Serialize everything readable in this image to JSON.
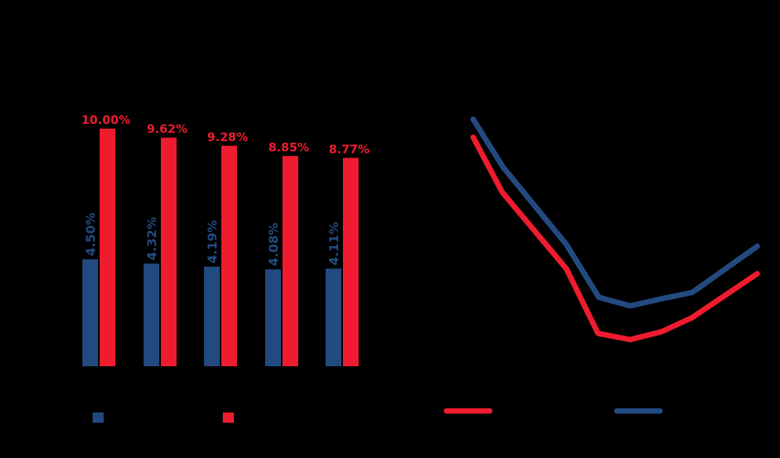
{
  "colors": {
    "background": "#000000",
    "blue": "#234A80",
    "red": "#EE1C2E"
  },
  "chart_data": [
    {
      "type": "bar",
      "title": "",
      "xlabel": "",
      "ylabel": "",
      "categories": [
        "",
        "",
        "",
        "",
        ""
      ],
      "series": [
        {
          "name": "",
          "color": "#234A80",
          "values": [
            4.5,
            4.32,
            4.19,
            4.08,
            4.11
          ],
          "labels": [
            "4.50%",
            "4.32%",
            "4.19%",
            "4.08%",
            "4.11%"
          ],
          "label_orientation": "vertical"
        },
        {
          "name": "",
          "color": "#EE1C2E",
          "values": [
            10.0,
            9.62,
            9.28,
            8.85,
            8.77
          ],
          "labels": [
            "10.00%",
            "9.62%",
            "9.28%",
            "8.85%",
            "8.77%"
          ],
          "label_orientation": "horizontal"
        }
      ],
      "ylim": [
        0,
        10.5
      ],
      "grid": false,
      "legend_position": "bottom"
    },
    {
      "type": "line",
      "title": "",
      "xlabel": "",
      "ylabel": "",
      "x": [
        1,
        2,
        3,
        4,
        5,
        6,
        7,
        8
      ],
      "series": [
        {
          "name": "",
          "color": "#EE1C2E",
          "values": [
            10.2,
            8.9,
            7.0,
            5.4,
            5.25,
            5.45,
            5.8,
            6.6
          ]
        },
        {
          "name": "",
          "color": "#234A80",
          "values": [
            10.65,
            9.5,
            7.6,
            6.3,
            6.1,
            6.28,
            6.43,
            7.55
          ]
        }
      ],
      "grid": false,
      "legend_position": "bottom",
      "pixel_points": {
        "red": [
          [
            603,
            175
          ],
          [
            640,
            245
          ],
          [
            722,
            343
          ],
          [
            762,
            425
          ],
          [
            803,
            433
          ],
          [
            843,
            423
          ],
          [
            882,
            405
          ],
          [
            965,
            349
          ]
        ],
        "blue": [
          [
            603,
            152
          ],
          [
            641,
            213
          ],
          [
            722,
            312
          ],
          [
            763,
            379
          ],
          [
            803,
            390
          ],
          [
            843,
            381
          ],
          [
            882,
            373
          ],
          [
            965,
            314
          ]
        ]
      }
    }
  ],
  "legend": {
    "bar": [
      {
        "swatch": "square",
        "color": "#234A80",
        "label": ""
      },
      {
        "swatch": "square",
        "color": "#EE1C2E",
        "label": ""
      }
    ],
    "line": [
      {
        "swatch": "line",
        "color": "#EE1C2E",
        "label": ""
      },
      {
        "swatch": "line",
        "color": "#234A80",
        "label": ""
      }
    ]
  }
}
